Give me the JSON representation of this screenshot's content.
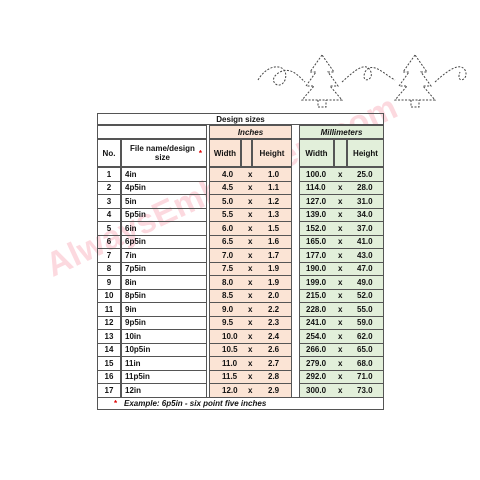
{
  "table": {
    "title": "Design sizes",
    "groups": [
      "Inches",
      "Millimeters"
    ],
    "headers": {
      "no": "No.",
      "name": "File name/design size",
      "star": "*",
      "width": "Width",
      "height": "Height"
    },
    "separator": "x",
    "rows": [
      [
        1,
        "4in",
        "4.0",
        "1.0",
        "100.0",
        "25.0"
      ],
      [
        2,
        "4p5in",
        "4.5",
        "1.1",
        "114.0",
        "28.0"
      ],
      [
        3,
        "5in",
        "5.0",
        "1.2",
        "127.0",
        "31.0"
      ],
      [
        4,
        "5p5in",
        "5.5",
        "1.3",
        "139.0",
        "34.0"
      ],
      [
        5,
        "6in",
        "6.0",
        "1.5",
        "152.0",
        "37.0"
      ],
      [
        6,
        "6p5in",
        "6.5",
        "1.6",
        "165.0",
        "41.0"
      ],
      [
        7,
        "7in",
        "7.0",
        "1.7",
        "177.0",
        "43.0"
      ],
      [
        8,
        "7p5in",
        "7.5",
        "1.9",
        "190.0",
        "47.0"
      ],
      [
        9,
        "8in",
        "8.0",
        "1.9",
        "199.0",
        "49.0"
      ],
      [
        10,
        "8p5in",
        "8.5",
        "2.0",
        "215.0",
        "52.0"
      ],
      [
        11,
        "9in",
        "9.0",
        "2.2",
        "228.0",
        "55.0"
      ],
      [
        12,
        "9p5in",
        "9.5",
        "2.3",
        "241.0",
        "59.0"
      ],
      [
        13,
        "10in",
        "10.0",
        "2.4",
        "254.0",
        "62.0"
      ],
      [
        14,
        "10p5in",
        "10.5",
        "2.6",
        "266.0",
        "65.0"
      ],
      [
        15,
        "11in",
        "11.0",
        "2.7",
        "279.0",
        "68.0"
      ],
      [
        16,
        "11p5in",
        "11.5",
        "2.8",
        "292.0",
        "71.0"
      ],
      [
        17,
        "12in",
        "12.0",
        "2.9",
        "300.0",
        "73.0"
      ]
    ],
    "footnote": {
      "star": "*",
      "text": "Example: 6p5in - six point five inches"
    }
  },
  "watermark": "AlwaysEmbroidery.com"
}
